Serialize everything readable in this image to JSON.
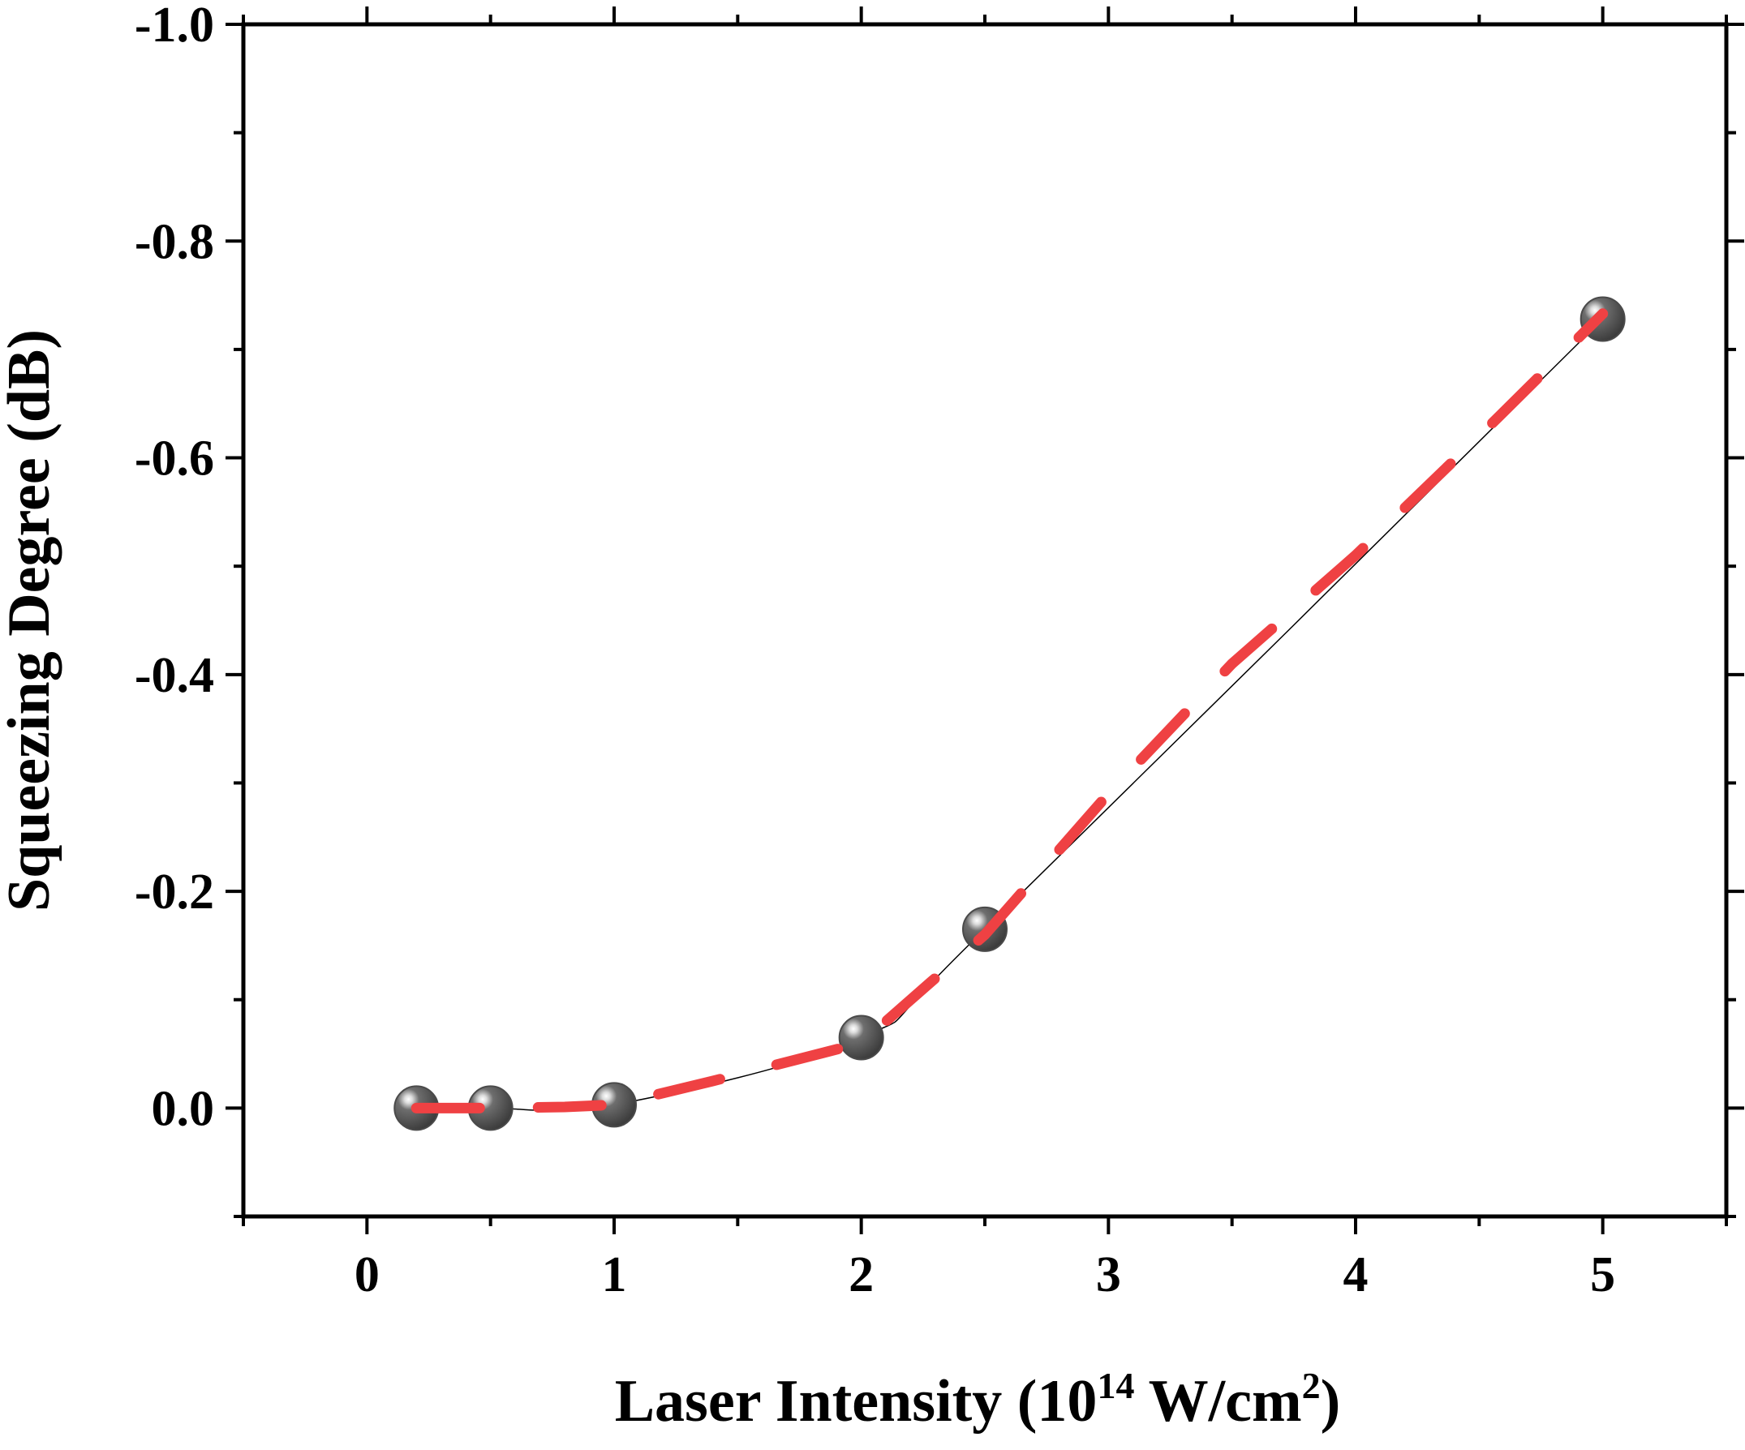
{
  "chart_data": {
    "type": "scatter",
    "title": "",
    "xlabel": {
      "prefix": "Laser Intensity (10",
      "exponent": "14",
      "middle": " W/cm",
      "unit_exponent": "2",
      "suffix": ")"
    },
    "ylabel": "Squeezing Degree (dB)",
    "xlim": [
      -0.5,
      5.5
    ],
    "ylim": [
      0.1,
      -1.0
    ],
    "y_axis_inverted": true,
    "x_ticks": [
      0,
      1,
      2,
      3,
      4,
      5
    ],
    "x_tick_labels": [
      "0",
      "1",
      "2",
      "3",
      "4",
      "5"
    ],
    "y_ticks": [
      0.0,
      -0.2,
      -0.4,
      -0.6,
      -0.8,
      -1.0
    ],
    "y_tick_labels": [
      "0.0",
      "-0.2",
      "-0.4",
      "-0.6",
      "-0.8",
      "-1.0"
    ],
    "x_minor_step": 0.5,
    "y_minor_step": 0.1,
    "grid": false,
    "legend": "none",
    "series": [
      {
        "kind": "markers-with-line",
        "marker": "sphere",
        "marker_color": "#4a4a4a",
        "line_color": "#000000",
        "x": [
          0.2,
          0.5,
          1.0,
          2.0,
          2.5,
          5.0
        ],
        "y": [
          0.0,
          0.0,
          -0.003,
          -0.065,
          -0.165,
          -0.728
        ]
      },
      {
        "kind": "dashed-fit",
        "line_color": "#ef4143",
        "x": [
          0.2,
          0.5,
          0.8,
          1.0,
          1.4,
          2.0,
          2.5,
          3.0,
          3.5,
          4.0,
          4.5,
          5.0
        ],
        "y": [
          0.0,
          0.0,
          -0.001,
          -0.003,
          -0.025,
          -0.06,
          -0.16,
          -0.29,
          -0.41,
          -0.51,
          -0.62,
          -0.733
        ]
      }
    ]
  }
}
